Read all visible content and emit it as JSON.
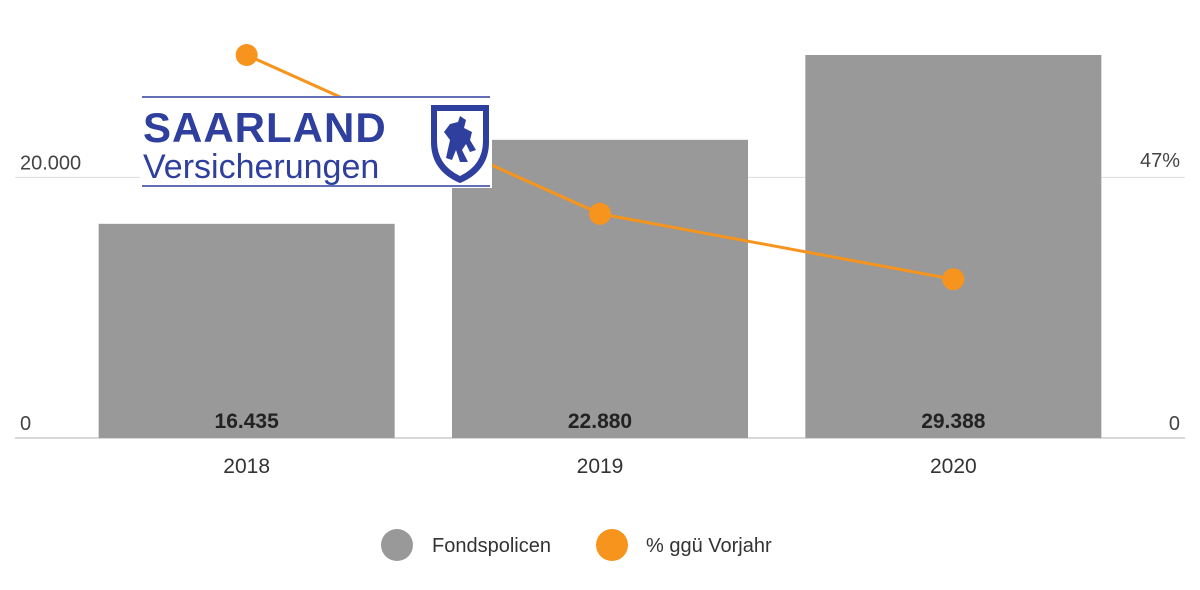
{
  "logo": {
    "title": "SAARLAND",
    "subtitle": "Versicherungen",
    "color": "#2e3f9e"
  },
  "chart_data": {
    "type": "bar",
    "categories": [
      "2018",
      "2019",
      "2020"
    ],
    "series": [
      {
        "name": "Fondspolicen",
        "type": "bar",
        "axis": "left",
        "values": [
          16435,
          22880,
          29388
        ],
        "value_labels": [
          "16.435",
          "22.880",
          "29.388"
        ],
        "color": "#999999"
      },
      {
        "name": "% ggü Vorjahr",
        "type": "line",
        "axis": "right",
        "values": [
          68.5,
          40.1,
          28.4
        ],
        "color": "#f7941d"
      }
    ],
    "left_axis": {
      "ylim": [
        0,
        29388
      ],
      "ticks": [
        {
          "value": 0,
          "label": "0"
        },
        {
          "value": 20000,
          "label": "20.000"
        }
      ]
    },
    "right_axis": {
      "ylim": [
        0,
        68.5
      ],
      "ticks": [
        {
          "value": 0,
          "label": "0"
        },
        {
          "value": 47,
          "label": "47%"
        }
      ]
    },
    "grid": true,
    "legend_position": "bottom-center"
  }
}
